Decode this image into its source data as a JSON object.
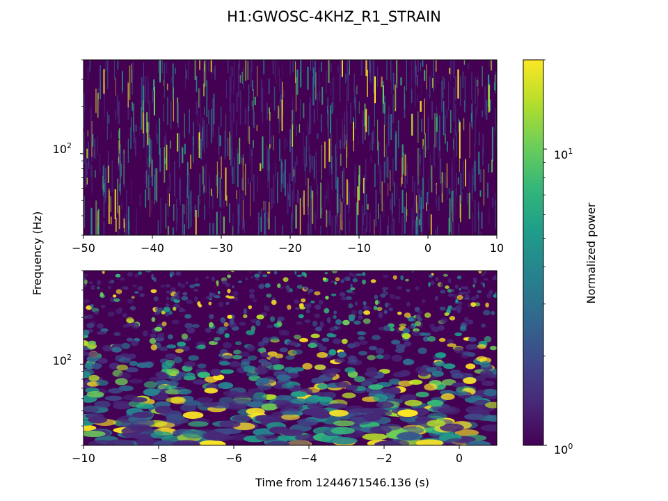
{
  "chart_data": [
    {
      "type": "heatmap",
      "title": "H1:GWOSC-4KHZ_R1_STRAIN",
      "xlabel": "",
      "ylabel": "Frequency (Hz)",
      "xlim": [
        -50,
        10
      ],
      "xticks": [
        -50,
        -40,
        -30,
        -20,
        -10,
        0,
        10
      ],
      "xtick_labels": [
        "−50",
        "−40",
        "−30",
        "−20",
        "−10",
        "0",
        "10"
      ],
      "ylim": [
        30,
        400
      ],
      "yscale": "log",
      "ytick_labels": [
        {
          "base": "10",
          "exp": "2",
          "value": 100
        }
      ],
      "colormap": "viridis",
      "texture": "thin vertical streaks, mostly low power"
    },
    {
      "type": "heatmap",
      "xlabel": "Time from 1244671546.136 (s)",
      "ylabel": "Frequency (Hz)",
      "xlim": [
        -10,
        1
      ],
      "xticks": [
        -10,
        -8,
        -6,
        -4,
        -2,
        0
      ],
      "xtick_labels": [
        "−10",
        "−8",
        "−6",
        "−4",
        "−2",
        "0"
      ],
      "ylim": [
        30,
        400
      ],
      "yscale": "log",
      "ytick_labels": [
        {
          "base": "10",
          "exp": "2",
          "value": 100
        }
      ],
      "colormap": "viridis",
      "texture": "blobby patches, wider at low frequency"
    }
  ],
  "colorbar": {
    "label": "Normalized power",
    "scale": "log",
    "range": [
      1,
      20
    ],
    "tick_labels": [
      {
        "base": "10",
        "exp": "0",
        "value": 1
      },
      {
        "base": "10",
        "exp": "1",
        "value": 10
      }
    ],
    "colormap": "viridis"
  },
  "colors": {
    "viridis": [
      "#440154",
      "#482878",
      "#3e4989",
      "#31688e",
      "#26828e",
      "#1f9e89",
      "#35b779",
      "#6ece58",
      "#b5de2b",
      "#fde725"
    ]
  }
}
